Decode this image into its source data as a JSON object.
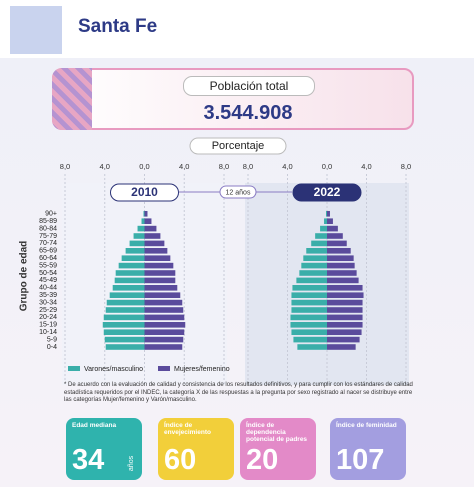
{
  "header": {
    "title": "Santa Fe"
  },
  "population": {
    "label": "Población total",
    "value": "3.544.908"
  },
  "interval": "12 años",
  "chart_data": [
    {
      "type": "pyramid",
      "title": "2010",
      "xlabel": "Porcentaje",
      "ylabel": "Grupo de edad",
      "categories": [
        "0-4",
        "5-9",
        "10-14",
        "15-19",
        "20-24",
        "25-29",
        "30-34",
        "35-39",
        "40-44",
        "45-49",
        "50-54",
        "55-59",
        "60-64",
        "65-69",
        "70-74",
        "75-79",
        "80-84",
        "85-89",
        "90+"
      ],
      "series": [
        {
          "name": "Varones/masculino",
          "color": "#3aaea9",
          "values": [
            3.9,
            4.0,
            4.1,
            4.2,
            4.1,
            3.9,
            3.8,
            3.5,
            3.2,
            3.0,
            2.9,
            2.6,
            2.3,
            1.9,
            1.5,
            1.1,
            0.7,
            0.3,
            0.1
          ]
        },
        {
          "name": "Mujeres/femenino",
          "color": "#5a4b9c",
          "values": [
            3.8,
            3.9,
            4.0,
            4.1,
            4.0,
            3.9,
            3.8,
            3.6,
            3.3,
            3.1,
            3.1,
            2.9,
            2.6,
            2.3,
            2.0,
            1.6,
            1.2,
            0.7,
            0.3
          ]
        }
      ],
      "xlim": [
        -8,
        8
      ],
      "xticks": [
        {
          "value": -8,
          "label": "8,0"
        },
        {
          "value": -4,
          "label": "4,0"
        },
        {
          "value": 0,
          "label": "0,0"
        },
        {
          "value": 4,
          "label": "4,0"
        },
        {
          "value": 8,
          "label": "8,0"
        }
      ],
      "grid": true,
      "legend": "bottom"
    },
    {
      "type": "pyramid",
      "title": "2022",
      "series": [
        {
          "color": "#3aaea9",
          "values": [
            3.0,
            3.4,
            3.6,
            3.7,
            3.7,
            3.6,
            3.6,
            3.6,
            3.5,
            3.1,
            2.8,
            2.6,
            2.4,
            2.1,
            1.6,
            1.2,
            0.7,
            0.3,
            0.1
          ]
        },
        {
          "color": "#5a4b9c",
          "values": [
            2.9,
            3.3,
            3.5,
            3.6,
            3.6,
            3.6,
            3.6,
            3.7,
            3.6,
            3.2,
            3.0,
            2.8,
            2.7,
            2.4,
            2.0,
            1.6,
            1.1,
            0.6,
            0.3
          ]
        }
      ],
      "xlim": [
        -8,
        8
      ],
      "xticks": [
        {
          "value": -8,
          "label": "8,0"
        },
        {
          "value": -4,
          "label": "4,0"
        },
        {
          "value": 0,
          "label": "0,0"
        },
        {
          "value": 4,
          "label": "4,0"
        },
        {
          "value": 8,
          "label": "8,0"
        }
      ],
      "grid": true
    }
  ],
  "note": "* De acuerdo con la evaluación de calidad y consistencia de los resultados definitivos, y para cumplir con los estándares de calidad estadística requeridos por el INDEC, la categoría X de las respuestas a la pregunta por sexo registrado al nacer se distribuye entre las categorías Mujer/femenino y Varón/masculino.",
  "indicators": [
    {
      "label": "Edad mediana",
      "value": 34,
      "unit": "años",
      "color": "#2fb3ad"
    },
    {
      "label": "Índice de envejecimiento",
      "value": 60,
      "color": "#f2cf3a"
    },
    {
      "label": "Índice de dependencia potencial de padres",
      "value": 20,
      "color": "#e38ac8"
    },
    {
      "label": "Índice de feminidad",
      "value": 107,
      "color": "#a39ee0"
    }
  ]
}
